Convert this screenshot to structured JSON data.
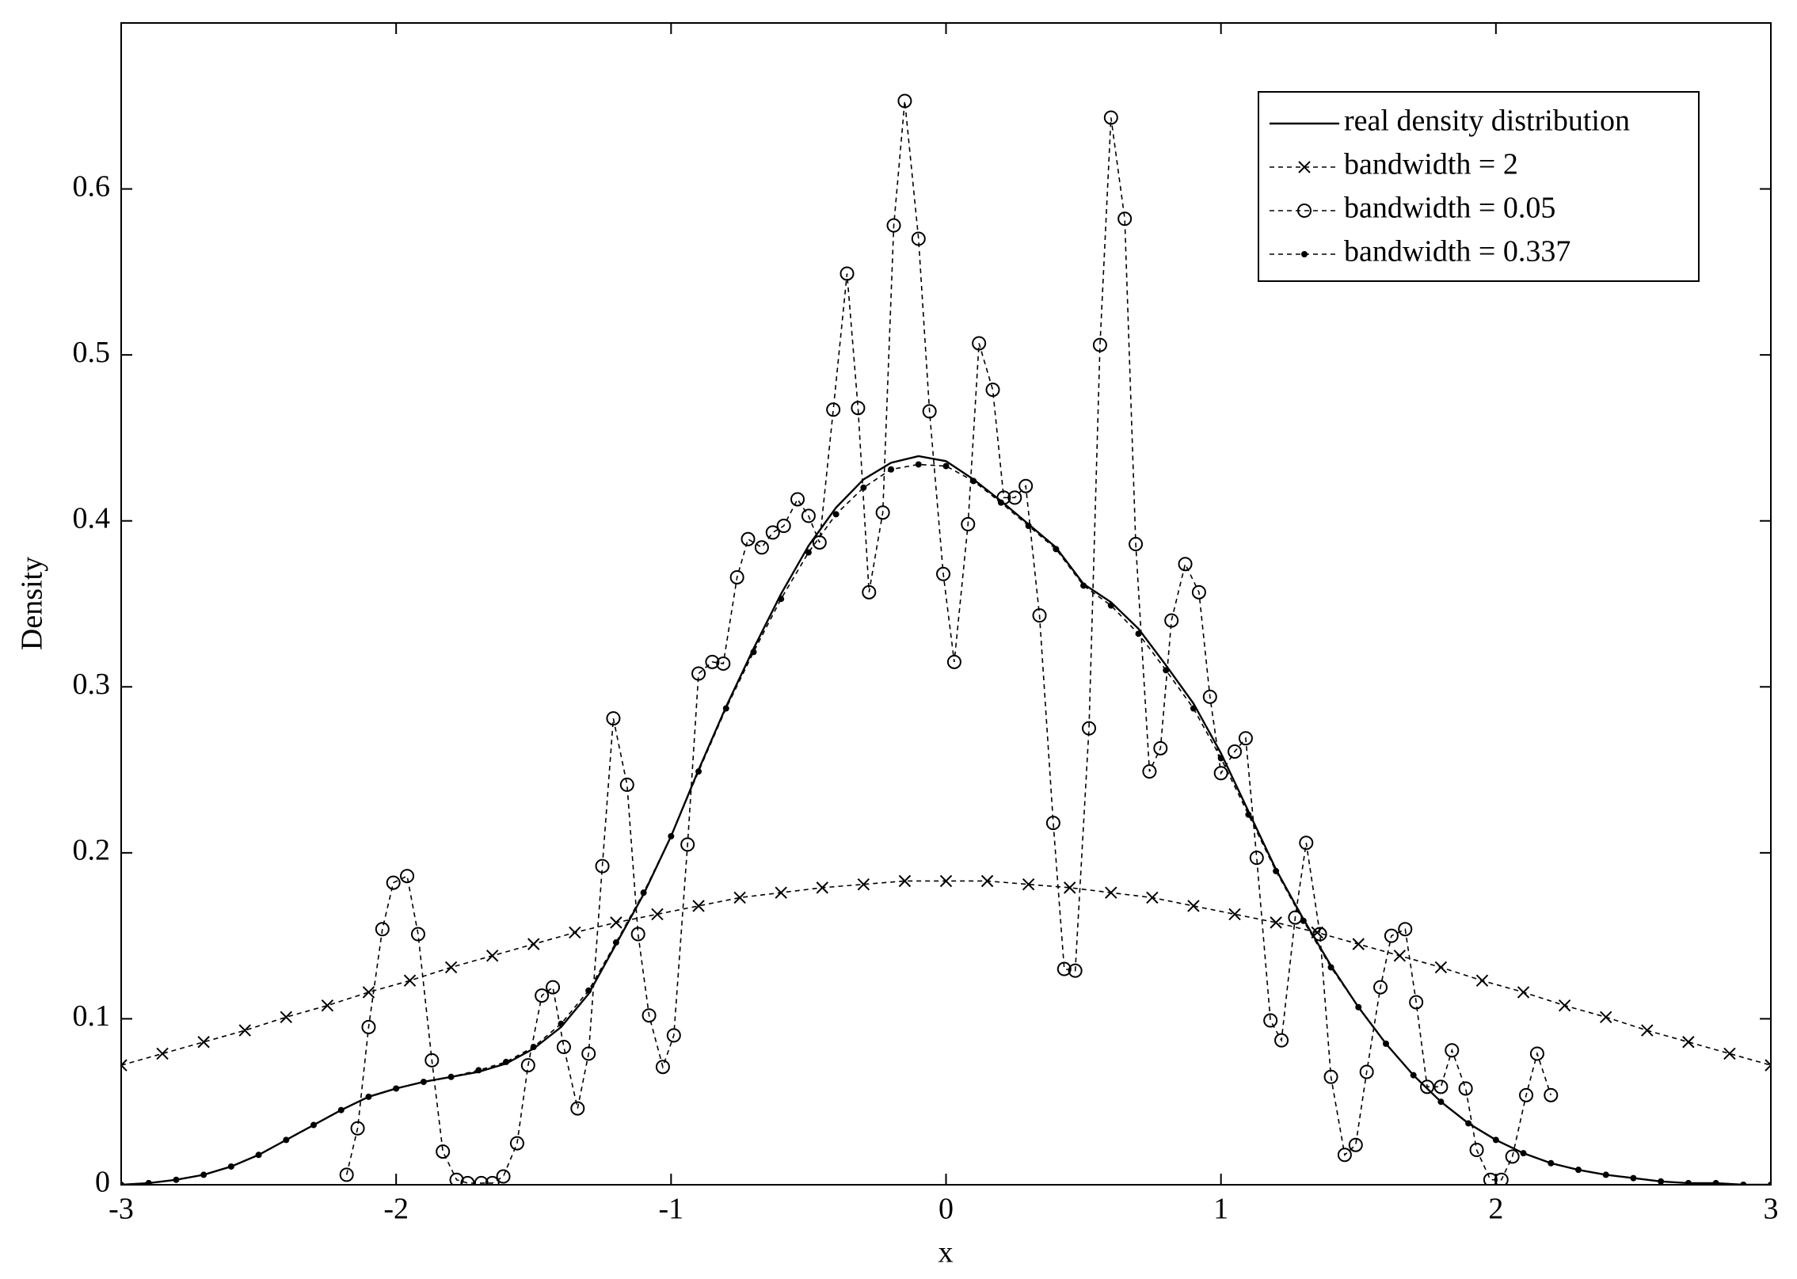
{
  "chart_data": {
    "type": "line",
    "xlabel": "x",
    "ylabel": "Density",
    "xlim": [
      -3,
      3
    ],
    "xticks": [
      -3,
      -2,
      -1,
      0,
      1,
      2,
      3
    ],
    "ylim": [
      0,
      0.7
    ],
    "yticks": [
      0,
      0.1,
      0.2,
      0.3,
      0.4,
      0.5,
      0.6
    ],
    "grid": false,
    "legend_position": "upper right",
    "series": [
      {
        "name": "real density distribution",
        "color": "#000000",
        "linestyle": "solid",
        "marker": "none",
        "x": [
          -3,
          -2.9,
          -2.8,
          -2.7,
          -2.6,
          -2.5,
          -2.4,
          -2.3,
          -2.2,
          -2.1,
          -2,
          -1.9,
          -1.8,
          -1.7,
          -1.6,
          -1.5,
          -1.4,
          -1.3,
          -1.2,
          -1.1,
          -1,
          -0.9,
          -0.8,
          -0.7,
          -0.6,
          -0.5,
          -0.4,
          -0.3,
          -0.2,
          -0.1,
          0,
          0.1,
          0.2,
          0.3,
          0.4,
          0.5,
          0.6,
          0.7,
          0.8,
          0.9,
          1,
          1.1,
          1.2,
          1.3,
          1.4,
          1.5,
          1.6,
          1.7,
          1.8,
          1.9,
          2,
          2.1,
          2.2,
          2.3,
          2.4,
          2.5,
          2.6,
          2.7,
          2.8,
          2.9,
          3
        ],
        "values": [
          0,
          0.001,
          0.003,
          0.006,
          0.011,
          0.018,
          0.027,
          0.036,
          0.045,
          0.053,
          0.058,
          0.062,
          0.065,
          0.068,
          0.073,
          0.082,
          0.095,
          0.115,
          0.145,
          0.175,
          0.21,
          0.25,
          0.288,
          0.323,
          0.356,
          0.385,
          0.408,
          0.425,
          0.435,
          0.439,
          0.436,
          0.425,
          0.412,
          0.398,
          0.384,
          0.362,
          0.351,
          0.335,
          0.313,
          0.29,
          0.26,
          0.225,
          0.19,
          0.16,
          0.132,
          0.107,
          0.085,
          0.066,
          0.05,
          0.037,
          0.027,
          0.019,
          0.013,
          0.009,
          0.006,
          0.004,
          0.002,
          0.001,
          0.001,
          0,
          0
        ]
      },
      {
        "name": "bandwidth = 2",
        "color": "#000000",
        "linestyle": "dashed",
        "marker": "x",
        "x": [
          -3,
          -2.85,
          -2.7,
          -2.55,
          -2.4,
          -2.25,
          -2.1,
          -1.95,
          -1.8,
          -1.65,
          -1.5,
          -1.35,
          -1.2,
          -1.05,
          -0.9,
          -0.75,
          -0.6,
          -0.45,
          -0.3,
          -0.15,
          0,
          0.15,
          0.3,
          0.45,
          0.6,
          0.75,
          0.9,
          1.05,
          1.2,
          1.35,
          1.5,
          1.65,
          1.8,
          1.95,
          2.1,
          2.25,
          2.4,
          2.55,
          2.7,
          2.85,
          3
        ],
        "values": [
          0.072,
          0.079,
          0.086,
          0.093,
          0.101,
          0.108,
          0.116,
          0.123,
          0.131,
          0.138,
          0.145,
          0.152,
          0.158,
          0.163,
          0.168,
          0.173,
          0.176,
          0.179,
          0.181,
          0.183,
          0.183,
          0.183,
          0.181,
          0.179,
          0.176,
          0.173,
          0.168,
          0.163,
          0.158,
          0.152,
          0.145,
          0.138,
          0.131,
          0.123,
          0.116,
          0.108,
          0.101,
          0.093,
          0.086,
          0.079,
          0.072
        ]
      },
      {
        "name": "bandwidth = 0.05",
        "color": "#000000",
        "linestyle": "dashed",
        "marker": "circle",
        "x": [
          -2.18,
          -2.14,
          -2.1,
          -2.05,
          -2.01,
          -1.96,
          -1.92,
          -1.87,
          -1.83,
          -1.78,
          -1.74,
          -1.69,
          -1.65,
          -1.61,
          -1.56,
          -1.52,
          -1.47,
          -1.43,
          -1.39,
          -1.34,
          -1.3,
          -1.25,
          -1.21,
          -1.16,
          -1.12,
          -1.08,
          -1.03,
          -0.99,
          -0.94,
          -0.9,
          -0.85,
          -0.81,
          -0.76,
          -0.72,
          -0.67,
          -0.63,
          -0.59,
          -0.54,
          -0.5,
          -0.46,
          -0.41,
          -0.36,
          -0.32,
          -0.28,
          -0.23,
          -0.19,
          -0.15,
          -0.1,
          -0.06,
          -0.01,
          0.03,
          0.08,
          0.12,
          0.17,
          0.21,
          0.25,
          0.29,
          0.34,
          0.39,
          0.43,
          0.47,
          0.52,
          0.56,
          0.6,
          0.65,
          0.69,
          0.74,
          0.78,
          0.82,
          0.87,
          0.92,
          0.96,
          1,
          1.05,
          1.09,
          1.13,
          1.18,
          1.22,
          1.27,
          1.31,
          1.36,
          1.4,
          1.45,
          1.49,
          1.53,
          1.58,
          1.62,
          1.67,
          1.71,
          1.75,
          1.8,
          1.84,
          1.89,
          1.93,
          1.98,
          2.02,
          2.06,
          2.11,
          2.15,
          2.2
        ],
        "values": [
          0.006,
          0.034,
          0.095,
          0.154,
          0.182,
          0.186,
          0.151,
          0.075,
          0.02,
          0.003,
          0.001,
          0.001,
          0.001,
          0.005,
          0.025,
          0.072,
          0.114,
          0.119,
          0.083,
          0.046,
          0.079,
          0.192,
          0.281,
          0.241,
          0.151,
          0.102,
          0.071,
          0.09,
          0.205,
          0.308,
          0.315,
          0.314,
          0.366,
          0.389,
          0.384,
          0.393,
          0.397,
          0.413,
          0.403,
          0.387,
          0.467,
          0.549,
          0.468,
          0.357,
          0.405,
          0.578,
          0.653,
          0.57,
          0.466,
          0.368,
          0.315,
          0.398,
          0.507,
          0.479,
          0.414,
          0.414,
          0.421,
          0.343,
          0.218,
          0.13,
          0.129,
          0.275,
          0.506,
          0.643,
          0.582,
          0.386,
          0.249,
          0.263,
          0.34,
          0.374,
          0.357,
          0.294,
          0.248,
          0.261,
          0.269,
          0.197,
          0.099,
          0.087,
          0.161,
          0.206,
          0.151,
          0.065,
          0.018,
          0.024,
          0.068,
          0.119,
          0.15,
          0.154,
          0.11,
          0.059,
          0.059,
          0.081,
          0.058,
          0.021,
          0.003,
          0.003,
          0.017,
          0.054,
          0.079,
          0.054
        ]
      },
      {
        "name": "bandwidth = 0.337",
        "color": "#000000",
        "linestyle": "dashed",
        "marker": "dot",
        "x": [
          -3,
          -2.9,
          -2.8,
          -2.7,
          -2.6,
          -2.5,
          -2.4,
          -2.3,
          -2.2,
          -2.1,
          -2,
          -1.9,
          -1.8,
          -1.7,
          -1.6,
          -1.5,
          -1.4,
          -1.3,
          -1.2,
          -1.1,
          -1,
          -0.9,
          -0.8,
          -0.7,
          -0.6,
          -0.5,
          -0.4,
          -0.3,
          -0.2,
          -0.1,
          0,
          0.1,
          0.2,
          0.3,
          0.4,
          0.5,
          0.6,
          0.7,
          0.8,
          0.9,
          1,
          1.1,
          1.2,
          1.3,
          1.4,
          1.5,
          1.6,
          1.7,
          1.8,
          1.9,
          2,
          2.1,
          2.2,
          2.3,
          2.4,
          2.5,
          2.6,
          2.7,
          2.8,
          2.9,
          3
        ],
        "values": [
          0,
          0.001,
          0.003,
          0.006,
          0.011,
          0.018,
          0.027,
          0.036,
          0.045,
          0.053,
          0.058,
          0.062,
          0.065,
          0.069,
          0.074,
          0.083,
          0.097,
          0.117,
          0.146,
          0.176,
          0.21,
          0.249,
          0.287,
          0.321,
          0.353,
          0.381,
          0.404,
          0.42,
          0.431,
          0.434,
          0.433,
          0.424,
          0.411,
          0.397,
          0.383,
          0.361,
          0.349,
          0.332,
          0.31,
          0.287,
          0.257,
          0.223,
          0.189,
          0.159,
          0.131,
          0.107,
          0.085,
          0.066,
          0.05,
          0.037,
          0.027,
          0.019,
          0.013,
          0.009,
          0.006,
          0.004,
          0.002,
          0.001,
          0.001,
          0,
          0
        ]
      }
    ]
  }
}
